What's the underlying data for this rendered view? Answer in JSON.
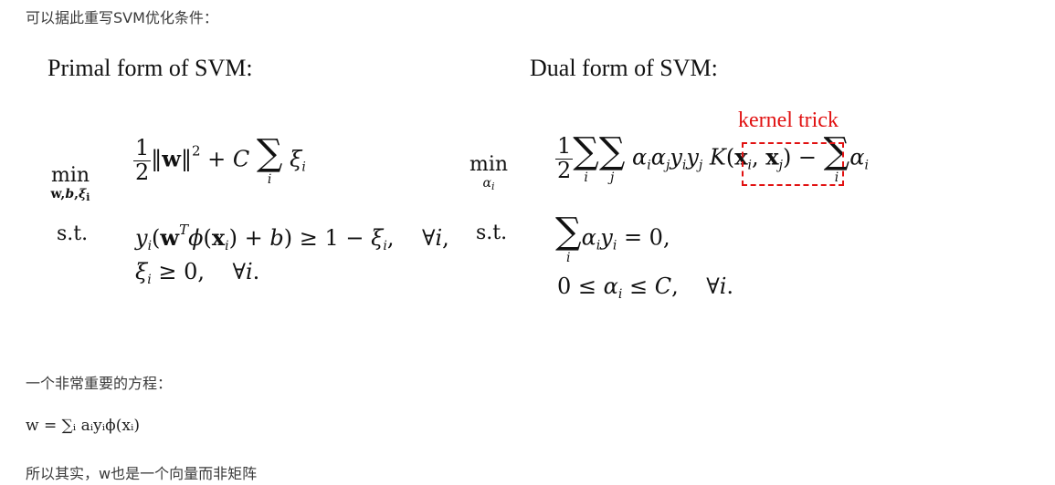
{
  "intro_text": "可以据此重写SVM优化条件：",
  "primal": {
    "heading": "Primal form of SVM:",
    "min_op": "min",
    "min_under": "w,b,ξ",
    "st": "s.t."
  },
  "dual": {
    "heading": "Dual form of SVM:",
    "min_op": "min",
    "min_under": "α",
    "st": "s.t."
  },
  "kernel_label": "kernel trick",
  "kernel_color": "#e11111",
  "important_text": "一个非常重要的方程：",
  "w_formula": "w = ∑ᵢ aᵢyᵢϕ(xᵢ)",
  "conclusion_text": "所以其实，w也是一个向量而非矩阵"
}
